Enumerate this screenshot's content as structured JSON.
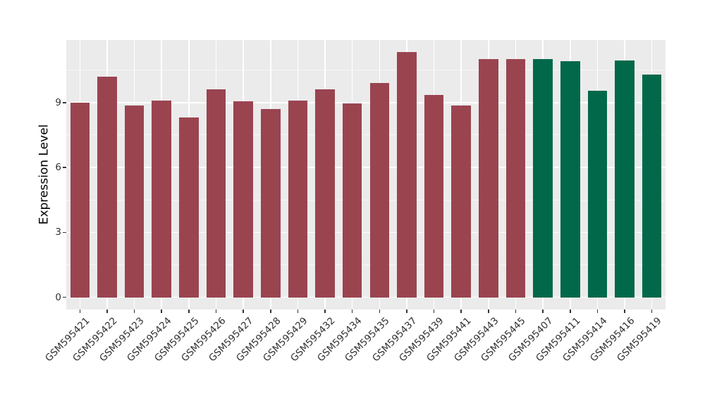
{
  "chart_data": {
    "type": "bar",
    "title": "",
    "xlabel": "",
    "ylabel": "Expression Level",
    "categories": [
      "GSM595421",
      "GSM595422",
      "GSM595423",
      "GSM595424",
      "GSM595425",
      "GSM595426",
      "GSM595427",
      "GSM595428",
      "GSM595429",
      "GSM595432",
      "GSM595434",
      "GSM595435",
      "GSM595437",
      "GSM595439",
      "GSM595441",
      "GSM595443",
      "GSM595445",
      "GSM595407",
      "GSM595411",
      "GSM595414",
      "GSM595416",
      "GSM595419"
    ],
    "values": [
      9.0,
      10.2,
      8.85,
      9.1,
      8.3,
      9.6,
      9.05,
      8.7,
      9.1,
      9.6,
      8.95,
      9.9,
      11.34,
      9.35,
      8.85,
      11.0,
      11.0,
      11.0,
      10.9,
      9.55,
      10.95,
      10.3
    ],
    "groups": [
      "a",
      "a",
      "a",
      "a",
      "a",
      "a",
      "a",
      "a",
      "a",
      "a",
      "a",
      "a",
      "a",
      "a",
      "a",
      "a",
      "a",
      "b",
      "b",
      "b",
      "b",
      "b"
    ],
    "group_colors": {
      "a": "#9A4450",
      "b": "#02684A"
    },
    "yticks": [
      0,
      3,
      6,
      9
    ],
    "minor_yticks": [
      1.5,
      4.5,
      7.5,
      10.5
    ],
    "ylim": [
      -0.567,
      11.907
    ],
    "x_tick_angle": 45,
    "legend_position": "none",
    "grid": "on",
    "panel_background": "#EBEBEB",
    "gridline_color": "#FFFFFF",
    "axis_text_color": "#303030",
    "tick_color": "#333333"
  }
}
